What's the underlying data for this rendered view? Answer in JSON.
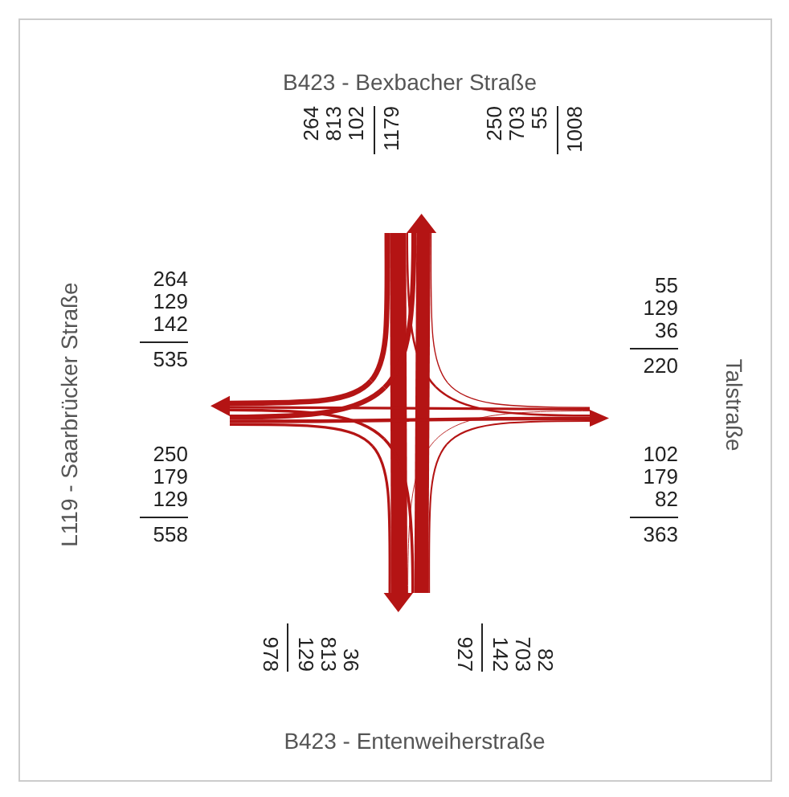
{
  "chart_data": {
    "type": "other",
    "categories": [
      "B423 - Bexbacher Straße",
      "Talstraße",
      "B423 - Entenweiherstraße",
      "L119 - Saarbrücker Straße"
    ],
    "series": [
      {
        "color": "#b41414",
        "values": [
          null,
          102,
          813,
          264
        ]
      },
      {
        "color": "#b41414",
        "values": [
          55,
          null,
          36,
          129
        ]
      },
      {
        "color": "#b41414",
        "values": [
          703,
          82,
          null,
          142
        ]
      },
      {
        "color": "#b41414",
        "values": [
          250,
          179,
          129,
          null
        ]
      },
      {
        "color": "#b41414",
        "values": [
          null,
          55,
          703,
          250
        ]
      },
      {
        "color": "#b41414",
        "values": [
          102,
          null,
          82,
          179
        ]
      },
      {
        "color": "#b41414",
        "values": [
          813,
          36,
          null,
          129
        ]
      },
      {
        "color": "#b41414",
        "values": [
          264,
          129,
          142,
          null
        ]
      }
    ],
    "data_labels": true,
    "totals": [
      [
        "1179",
        "1008"
      ],
      [
        "220",
        "363"
      ],
      [
        "927",
        "978"
      ],
      [
        "558",
        "535"
      ]
    ]
  }
}
